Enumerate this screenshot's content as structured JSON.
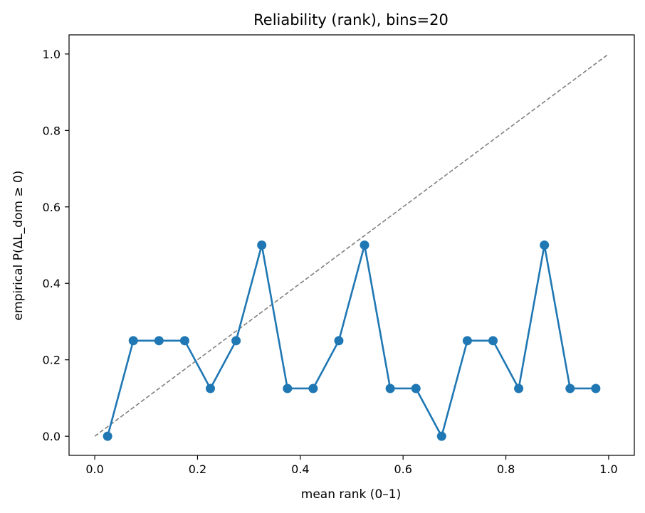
{
  "chart_data": {
    "type": "line",
    "title": "Reliability (rank), bins=20",
    "xlabel": "mean rank (0–1)",
    "ylabel": "empirical P(ΔL_dom ≥ 0)",
    "xlim": [
      -0.05,
      1.05
    ],
    "ylim": [
      -0.05,
      1.05
    ],
    "xticks": [
      "0.0",
      "0.2",
      "0.4",
      "0.6",
      "0.8",
      "1.0"
    ],
    "yticks": [
      "0.0",
      "0.2",
      "0.4",
      "0.6",
      "0.8",
      "1.0"
    ],
    "grid": false,
    "series": [
      {
        "color": "#1f77b4",
        "marker": "circle",
        "x": [
          0.025,
          0.075,
          0.125,
          0.175,
          0.225,
          0.275,
          0.325,
          0.375,
          0.425,
          0.475,
          0.525,
          0.575,
          0.625,
          0.675,
          0.725,
          0.775,
          0.825,
          0.875,
          0.925,
          0.975
        ],
        "y": [
          0.0,
          0.25,
          0.25,
          0.25,
          0.125,
          0.25,
          0.5,
          0.125,
          0.125,
          0.25,
          0.5,
          0.125,
          0.125,
          0.0,
          0.25,
          0.25,
          0.125,
          0.5,
          0.125,
          0.125
        ]
      }
    ],
    "reference_line": {
      "style": "dashed",
      "color": "#808080",
      "x": [
        0,
        1
      ],
      "y": [
        0,
        1
      ]
    }
  }
}
